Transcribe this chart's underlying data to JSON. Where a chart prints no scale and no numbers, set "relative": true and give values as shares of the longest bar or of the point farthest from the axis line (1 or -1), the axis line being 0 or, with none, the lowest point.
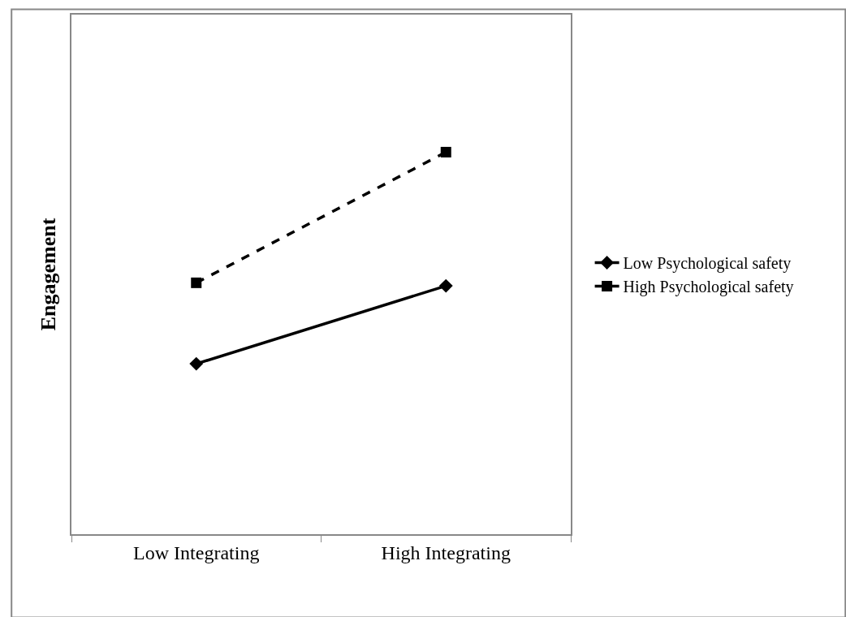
{
  "chart_data": {
    "type": "line",
    "ylabel": "Engagement",
    "categories": [
      "Low Integrating",
      "High Integrating"
    ],
    "relative": true,
    "grid": false,
    "legend": "right",
    "series": [
      {
        "name": "Low Psychological safety",
        "color": "#000000",
        "values": [
          0.446,
          0.65
        ],
        "marker": "diamond",
        "line_style": "solid"
      },
      {
        "name": "High Psychological safety",
        "color": "#000000",
        "values": [
          0.658,
          1
        ],
        "marker": "square",
        "line_style": "dashed"
      }
    ]
  }
}
